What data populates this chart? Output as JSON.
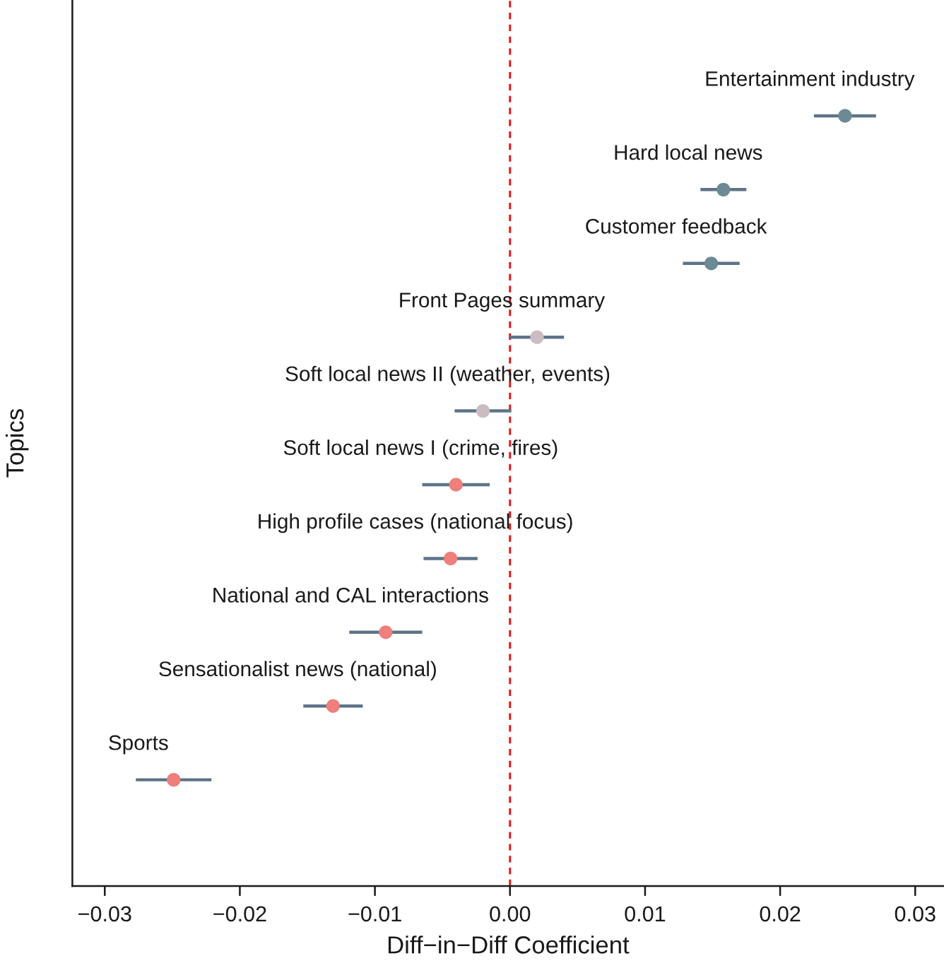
{
  "chart_data": {
    "type": "scatter",
    "orientation": "horizontal",
    "xlabel": "Diff−in−Diff Coefficient",
    "ylabel": "Topics",
    "categories": [
      "Entertainment industry",
      "Hard local news",
      "Customer feedback",
      "Front Pages summary",
      "Soft local news II (weather, events)",
      "Soft local news I (crime, fires)",
      "High profile cases (national focus)",
      "National and CAL interactions",
      "Sensationalist news (national)",
      "Sports"
    ],
    "values": [
      0.0248,
      0.0158,
      0.0149,
      0.002,
      -0.002,
      -0.004,
      -0.0044,
      -0.0092,
      -0.0131,
      -0.0249
    ],
    "errors": [
      0.0023,
      0.0017,
      0.0021,
      0.002,
      0.0021,
      0.0025,
      0.002,
      0.0027,
      0.0022,
      0.0028
    ],
    "colors": [
      "#6b8a93",
      "#6b8a93",
      "#6b8a93",
      "#cbbcc3",
      "#cbbcc3",
      "#ee7f7b",
      "#ee7f7b",
      "#ee7f7b",
      "#ee7f7b",
      "#ee7f7b"
    ],
    "color": "#5e7388",
    "marker": "circle",
    "xlim": [
      -0.0324,
      0.0321
    ],
    "xticks": [
      {
        "value": -0.03,
        "label": "−0.03"
      },
      {
        "value": -0.02,
        "label": "−0.02"
      },
      {
        "value": -0.01,
        "label": "−0.01"
      },
      {
        "value": 0,
        "label": "0.00"
      },
      {
        "value": 0.01,
        "label": "0.01"
      },
      {
        "value": 0.02,
        "label": "0.02"
      },
      {
        "value": 0.03,
        "label": "0.03"
      }
    ],
    "tick_labels": "x",
    "grid": false,
    "legend": false,
    "ref_lines": [
      {
        "axis": "x",
        "value": 0,
        "color": "#e31a1c",
        "line_style": "dashed"
      }
    ]
  }
}
